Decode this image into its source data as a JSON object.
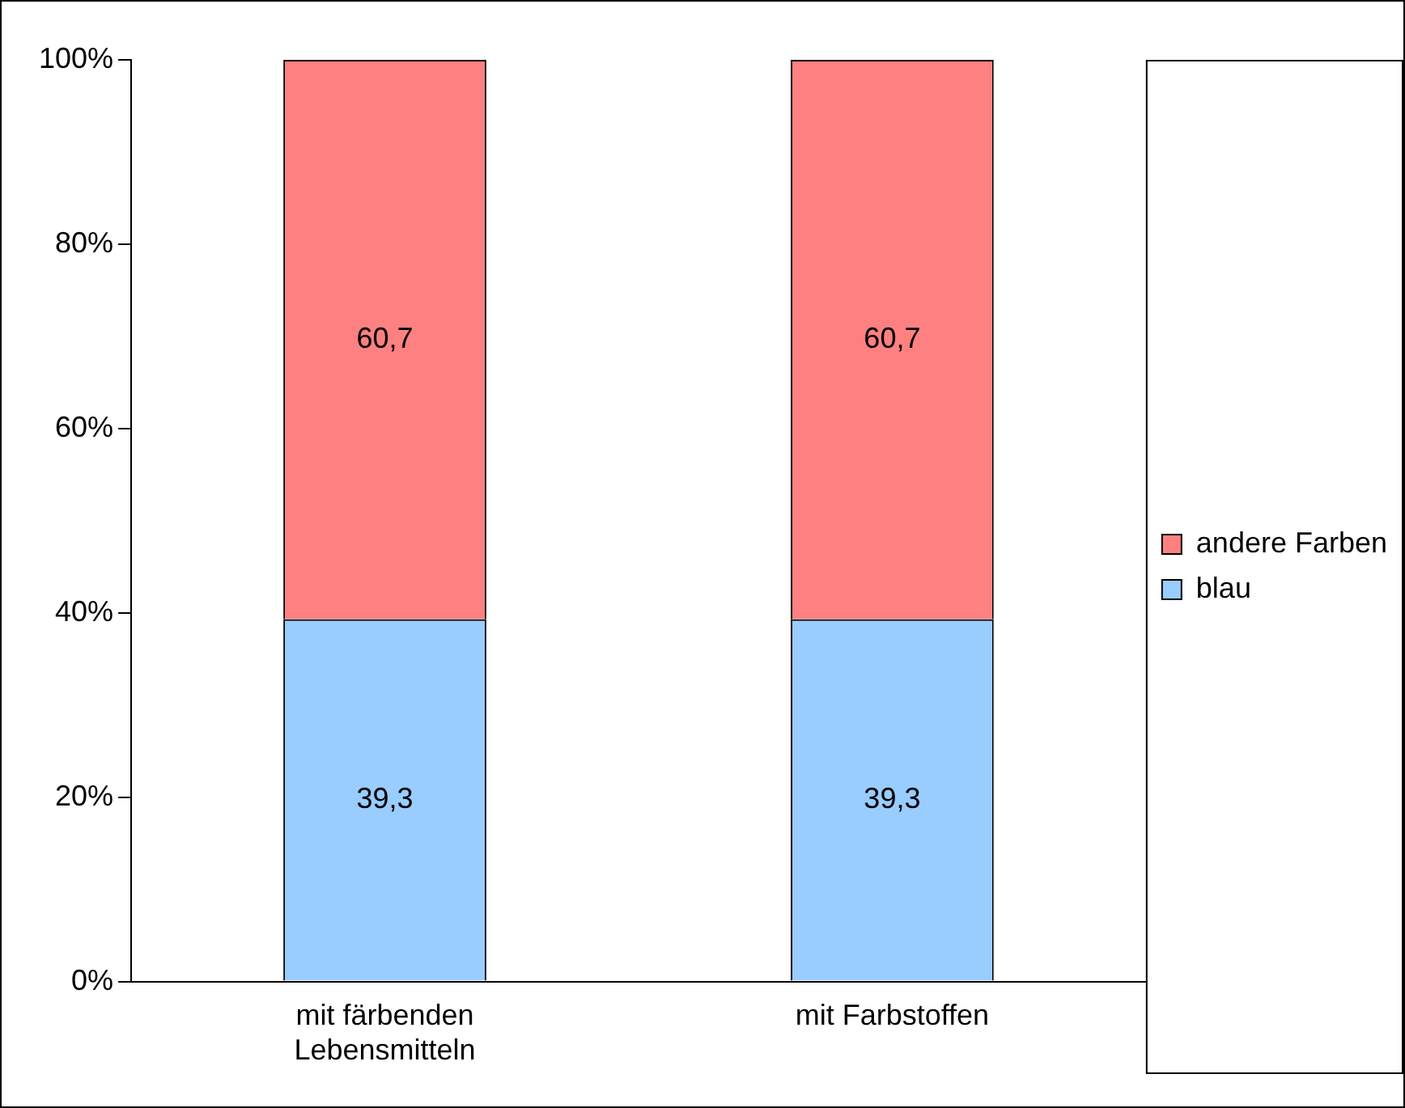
{
  "chart_data": {
    "type": "bar",
    "stacked": true,
    "categories": [
      "mit färbenden Lebensmitteln",
      "mit Farbstoffen"
    ],
    "series": [
      {
        "name": "blau",
        "color": "#99ccff",
        "values": [
          39.3,
          39.3
        ],
        "value_labels": [
          "39,3",
          "39,3"
        ]
      },
      {
        "name": "andere Farben",
        "color": "#ff8080",
        "values": [
          60.7,
          60.7
        ],
        "value_labels": [
          "60,7",
          "60,7"
        ]
      }
    ],
    "ylim": [
      0,
      100
    ],
    "yticks": [
      {
        "value": 0,
        "label": "0%"
      },
      {
        "value": 20,
        "label": "20%"
      },
      {
        "value": 40,
        "label": "40%"
      },
      {
        "value": 60,
        "label": "60%"
      },
      {
        "value": 80,
        "label": "80%"
      },
      {
        "value": 100,
        "label": "100%"
      }
    ],
    "grid": false,
    "legend": "right"
  }
}
